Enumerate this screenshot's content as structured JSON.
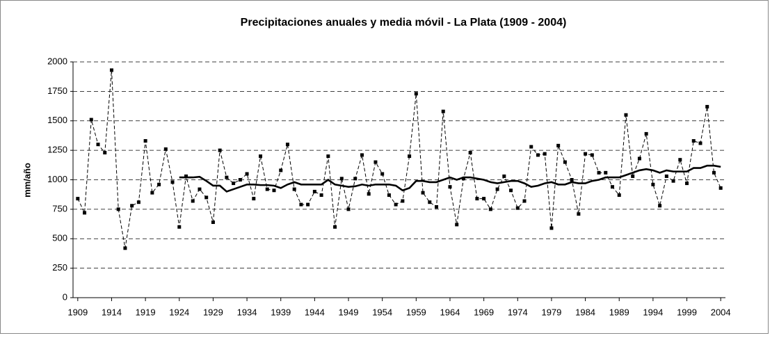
{
  "chart_data": {
    "type": "line",
    "title": "Precipitaciones anuales y media móvil - La Plata (1909 - 2004)",
    "y_label": "mm/año",
    "x": [
      1909,
      1910,
      1911,
      1912,
      1913,
      1914,
      1915,
      1916,
      1917,
      1918,
      1919,
      1920,
      1921,
      1922,
      1923,
      1924,
      1925,
      1926,
      1927,
      1928,
      1929,
      1930,
      1931,
      1932,
      1933,
      1934,
      1935,
      1936,
      1937,
      1938,
      1939,
      1940,
      1941,
      1942,
      1943,
      1944,
      1945,
      1946,
      1947,
      1948,
      1949,
      1950,
      1951,
      1952,
      1953,
      1954,
      1955,
      1956,
      1957,
      1958,
      1959,
      1960,
      1961,
      1962,
      1963,
      1964,
      1965,
      1966,
      1967,
      1968,
      1969,
      1970,
      1971,
      1972,
      1973,
      1974,
      1975,
      1976,
      1977,
      1978,
      1979,
      1980,
      1981,
      1982,
      1983,
      1984,
      1985,
      1986,
      1987,
      1988,
      1989,
      1990,
      1991,
      1992,
      1993,
      1994,
      1995,
      1996,
      1997,
      1998,
      1999,
      2000,
      2001,
      2002,
      2003,
      2004
    ],
    "series": [
      {
        "color": "#000000",
        "style": "dashed",
        "markers": true,
        "values": [
          840,
          720,
          1510,
          1300,
          1230,
          1930,
          750,
          420,
          780,
          810,
          1330,
          890,
          960,
          1260,
          980,
          600,
          1030,
          820,
          920,
          850,
          640,
          1250,
          1020,
          970,
          1000,
          1050,
          840,
          1200,
          920,
          910,
          1080,
          1300,
          920,
          790,
          790,
          900,
          870,
          1200,
          600,
          1010,
          750,
          1010,
          1210,
          880,
          1150,
          1050,
          870,
          790,
          820,
          1200,
          1730,
          890,
          810,
          770,
          1580,
          940,
          620,
          1010,
          1230,
          840,
          840,
          750,
          920,
          1030,
          910,
          760,
          820,
          1280,
          1210,
          1220,
          590,
          1290,
          1150,
          1000,
          710,
          1220,
          1210,
          1060,
          1060,
          940,
          870,
          1550,
          1030,
          1180,
          1390,
          960,
          780,
          1030,
          990,
          1170,
          970,
          1330,
          1310,
          1620,
          1060,
          930
        ]
      },
      {
        "color": "#000000",
        "style": "solid",
        "markers": false,
        "values": [
          null,
          null,
          null,
          null,
          null,
          null,
          null,
          null,
          null,
          null,
          null,
          null,
          null,
          null,
          null,
          1020,
          1020,
          1020,
          1025,
          990,
          950,
          950,
          900,
          920,
          940,
          960,
          960,
          955,
          955,
          950,
          930,
          960,
          980,
          960,
          960,
          960,
          960,
          1000,
          960,
          950,
          940,
          945,
          960,
          950,
          960,
          960,
          960,
          950,
          910,
          930,
          990,
          990,
          980,
          980,
          1000,
          1020,
          1000,
          1020,
          1020,
          1010,
          1000,
          980,
          970,
          980,
          990,
          990,
          970,
          940,
          950,
          970,
          980,
          960,
          960,
          980,
          970,
          970,
          990,
          1000,
          1020,
          1020,
          1020,
          1040,
          1060,
          1080,
          1090,
          1080,
          1060,
          1080,
          1070,
          1070,
          1070,
          1100,
          1100,
          1120,
          1120,
          1110
        ]
      }
    ],
    "xlim": [
      1908.3,
      2004.7
    ],
    "xticks": [
      1909,
      1914,
      1919,
      1924,
      1929,
      1934,
      1939,
      1944,
      1949,
      1954,
      1959,
      1964,
      1969,
      1974,
      1979,
      1984,
      1989,
      1994,
      1999,
      2004
    ],
    "ylim": [
      0,
      2000
    ],
    "yticks": [
      0,
      250,
      500,
      750,
      1000,
      1250,
      1500,
      1750,
      2000
    ],
    "grid": true
  }
}
